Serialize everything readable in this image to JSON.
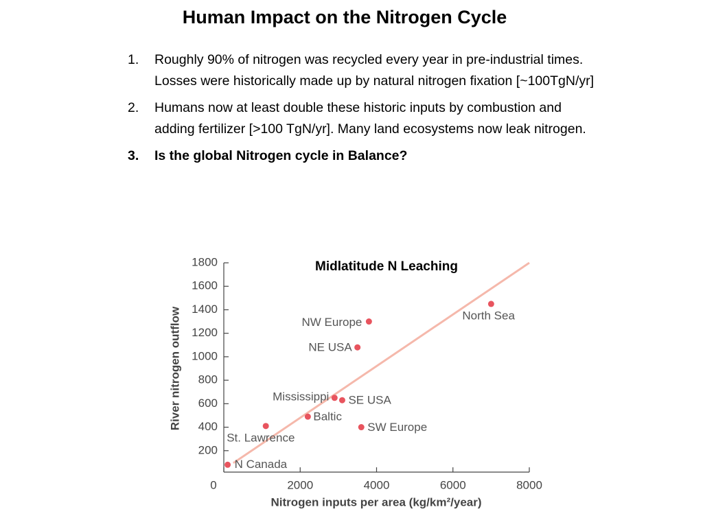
{
  "header": {
    "title": "Human Impact on the Nitrogen Cycle"
  },
  "items": [
    {
      "marker": "1.",
      "text": "Roughly 90% of nitrogen was recycled every year in pre-industrial times.  Losses were historically made up by natural nitrogen fixation [~100TgN/yr]"
    },
    {
      "marker": "2.",
      "text": "Humans now at least double these historic inputs by combustion and adding fertilizer [>100 TgN/yr].  Many land ecosystems now leak nitrogen."
    },
    {
      "marker": "3.",
      "text": "Is the global Nitrogen cycle in Balance?",
      "bold": true
    }
  ],
  "chart_data": {
    "type": "scatter",
    "title": "Midlatitude N Leaching",
    "x_label": "Nitrogen inputs per area (kg/km²/year)",
    "y_label": "River nitrogen outflow",
    "labels": [
      "N Canada",
      "St. Lawrence",
      "Baltic",
      "Mississippi",
      "SE USA",
      "SW Europe",
      "NE USA",
      "NW Europe",
      "North Sea"
    ],
    "x": [
      100,
      1100,
      2200,
      2900,
      3100,
      3600,
      3500,
      3800,
      7000
    ],
    "y": [
      80,
      410,
      490,
      650,
      630,
      400,
      1080,
      1300,
      1450
    ],
    "color": "#e8545e",
    "trendline": {
      "color": "#f5b8ab",
      "x": [
        250,
        8000
      ],
      "y": [
        95,
        1800
      ]
    },
    "xlim": [
      0,
      8000
    ],
    "xticks": [
      0,
      2000,
      4000,
      6000,
      8000
    ],
    "ylim": [
      0,
      1800
    ],
    "yticks": [
      200,
      400,
      600,
      800,
      1000,
      1200,
      1400,
      1600,
      1800
    ]
  }
}
